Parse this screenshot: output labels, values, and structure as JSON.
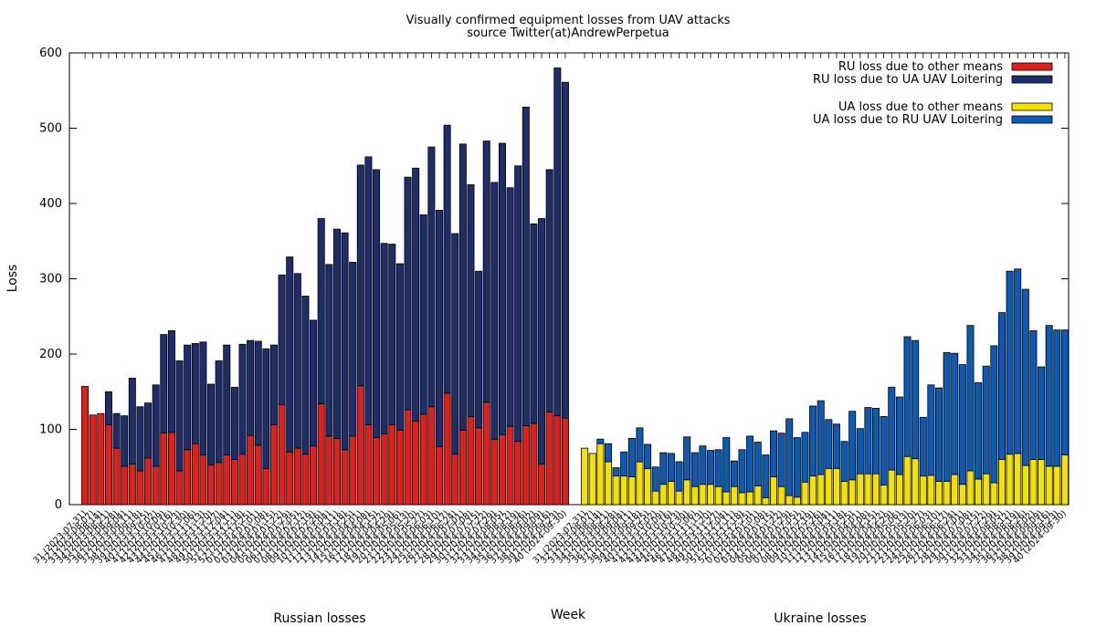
{
  "chart_data": {
    "type": "bar",
    "stacked": true,
    "title": "Visually confirmed equipment losses from UAV attacks",
    "subtitle": "source Twitter(at)AndrewPerpetua",
    "xlabel": "Week",
    "ylabel": "Loss",
    "ylim": [
      0,
      600
    ],
    "yticks": [
      0,
      100,
      200,
      300,
      400,
      500,
      600
    ],
    "grid": false,
    "legend_position": "top-right",
    "group_labels": [
      "Russian losses",
      "Ukraine losses"
    ],
    "categories": [
      "31 (2023-07-31)",
      "32 (2023-08-07)",
      "33 (2023-08-14)",
      "34 (2023-08-21)",
      "35 (2023-08-28)",
      "36 (2023-09-04)",
      "37 (2023-09-11)",
      "38 (2023-09-18)",
      "39 (2023-09-25)",
      "40 (2023-10-02)",
      "41 (2023-10-09)",
      "42 (2023-10-16)",
      "43 (2023-10-23)",
      "44 (2023-10-30)",
      "45 (2023-11-06)",
      "46 (2023-11-13)",
      "47 (2023-11-20)",
      "48 (2023-11-27)",
      "49 (2023-12-04)",
      "50 (2023-12-11)",
      "51 (2023-12-18)",
      "52 (2023-12-25)",
      "01 (2024-01-01)",
      "02 (2024-01-08)",
      "03 (2024-01-15)",
      "04 (2024-01-22)",
      "05 (2024-01-29)",
      "06 (2024-02-05)",
      "07 (2024-02-12)",
      "08 (2024-02-19)",
      "09 (2024-02-26)",
      "10 (2024-03-04)",
      "11 (2024-03-11)",
      "12 (2024-03-18)",
      "13 (2024-03-25)",
      "14 (2024-04-01)",
      "15 (2024-04-08)",
      "16 (2024-04-15)",
      "17 (2024-04-22)",
      "18 (2024-04-29)",
      "19 (2024-05-06)",
      "20 (2024-05-13)",
      "21 (2024-05-20)",
      "22 (2024-05-27)",
      "23 (2024-06-03)",
      "24 (2024-06-10)",
      "25 (2024-06-17)",
      "26 (2024-06-24)",
      "27 (2024-07-01)",
      "28 (2024-07-08)",
      "29 (2024-07-15)",
      "30 (2024-07-22)",
      "31 (2024-07-29)",
      "32 (2024-08-05)",
      "33 (2024-08-12)",
      "34 (2024-08-19)",
      "35 (2024-08-26)",
      "36 (2024-09-02)",
      "37 (2024-09-09)",
      "38 (2024-09-16)",
      "39 (2024-09-23)",
      "40 (2024-09-30)"
    ],
    "series": [
      {
        "name": "RU loss due to other means",
        "group": "Russian losses",
        "color": "#e0201c",
        "values": [
          157,
          119,
          121,
          106,
          75,
          51,
          54,
          45,
          62,
          51,
          95,
          96,
          45,
          73,
          81,
          66,
          53,
          56,
          66,
          60,
          67,
          92,
          79,
          48,
          106,
          133,
          70,
          75,
          67,
          78,
          134,
          91,
          88,
          73,
          91,
          158,
          106,
          89,
          94,
          106,
          99,
          126,
          111,
          120,
          130,
          77,
          148,
          67,
          99,
          117,
          102,
          136,
          87,
          93,
          104,
          84,
          105,
          108,
          54,
          123,
          118,
          115
        ],
        "tops": [
          157,
          119,
          121,
          150,
          121,
          118,
          168,
          130,
          135,
          159,
          226,
          231,
          191,
          212,
          214,
          216,
          160,
          191,
          212,
          156,
          213,
          218,
          217,
          207,
          212,
          305,
          329,
          307,
          277,
          245,
          380,
          319,
          366,
          361,
          322,
          451,
          462,
          445,
          347,
          346,
          320,
          435,
          447,
          385,
          475,
          391,
          504,
          360,
          479,
          425,
          310,
          483,
          428,
          480,
          421,
          450,
          528,
          373,
          380,
          445,
          580,
          561
        ]
      },
      {
        "name": "RU loss due to UA UAV Loitering",
        "group": "Russian losses",
        "color": "#1f2d6b",
        "values": [
          0,
          0,
          0,
          44,
          46,
          67,
          114,
          85,
          73,
          108,
          131,
          135,
          146,
          139,
          133,
          150,
          107,
          135,
          146,
          96,
          146,
          126,
          138,
          159,
          106,
          172,
          259,
          232,
          210,
          167,
          246,
          228,
          278,
          288,
          231,
          293,
          356,
          356,
          253,
          240,
          221,
          309,
          336,
          265,
          345,
          314,
          356,
          293,
          380,
          308,
          208,
          347,
          341,
          387,
          317,
          366,
          423,
          265,
          326,
          322,
          462,
          446
        ]
      },
      {
        "name": "UA loss due to other means",
        "group": "Ukraine losses",
        "color": "#f5e100",
        "values": [
          75,
          68,
          81,
          57,
          38,
          38,
          37,
          57,
          48,
          18,
          27,
          31,
          18,
          33,
          24,
          27,
          27,
          24,
          17,
          24,
          16,
          17,
          25,
          9,
          37,
          24,
          12,
          10,
          30,
          38,
          40,
          48,
          48,
          31,
          33,
          41,
          41,
          41,
          26,
          46,
          40,
          64,
          61,
          38,
          39,
          31,
          31,
          40,
          27,
          45,
          34,
          41,
          29,
          60,
          67,
          68,
          52,
          60,
          60,
          51,
          51,
          66
        ],
        "tops": [
          75,
          68,
          87,
          81,
          49,
          70,
          88,
          102,
          80,
          50,
          69,
          68,
          57,
          90,
          69,
          78,
          72,
          73,
          89,
          58,
          73,
          91,
          83,
          66,
          98,
          95,
          114,
          89,
          96,
          131,
          138,
          113,
          107,
          84,
          124,
          101,
          129,
          128,
          117,
          156,
          143,
          223,
          218,
          116,
          159,
          155,
          202,
          201,
          186,
          238,
          162,
          184,
          211,
          255,
          310,
          313,
          286,
          231,
          183,
          238,
          232,
          232
        ]
      },
      {
        "name": "UA loss due to RU UAV Loitering",
        "group": "Ukraine losses",
        "color": "#0d5ab5",
        "values": [
          0,
          0,
          6,
          24,
          11,
          32,
          51,
          45,
          32,
          32,
          42,
          37,
          39,
          57,
          45,
          51,
          45,
          49,
          72,
          34,
          57,
          74,
          58,
          57,
          61,
          71,
          102,
          79,
          66,
          93,
          98,
          65,
          59,
          53,
          91,
          60,
          88,
          87,
          91,
          110,
          103,
          159,
          157,
          78,
          120,
          124,
          171,
          161,
          159,
          193,
          128,
          143,
          182,
          195,
          243,
          245,
          234,
          171,
          123,
          187,
          181,
          166
        ]
      }
    ]
  }
}
